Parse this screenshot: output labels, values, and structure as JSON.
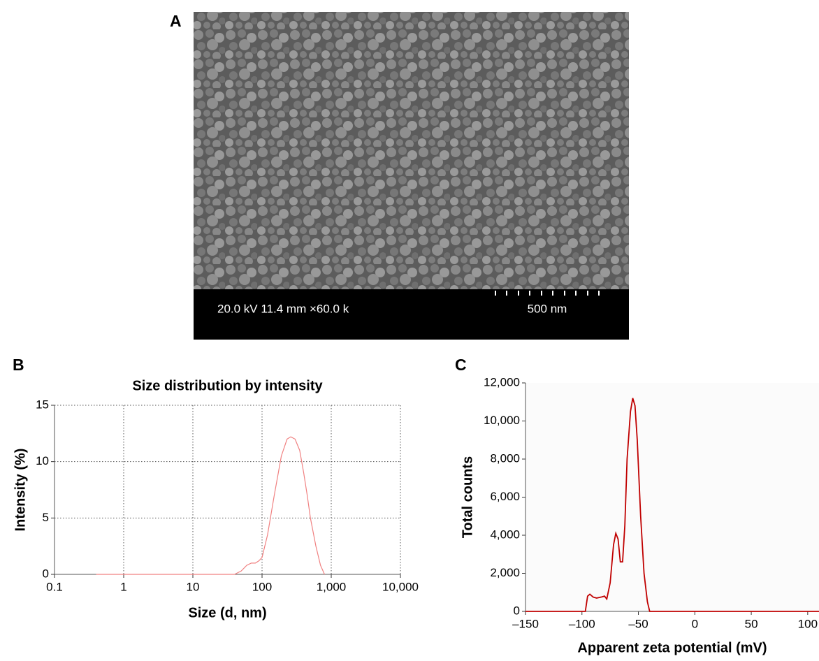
{
  "image": {
    "label": "A",
    "info": "20.0 kV 11.4 mm ×60.0 k",
    "scale": "500 nm"
  },
  "chart_data": [
    {
      "type": "line",
      "panel": "B",
      "title": "Size distribution by intensity",
      "x_label": "Size (d, nm)",
      "y_label": "Intensity (%)",
      "log_x": true,
      "grid": true,
      "xlim": [
        0.1,
        10000
      ],
      "ylim": [
        0,
        15
      ],
      "xticks": [
        0.1,
        1,
        10,
        100,
        {
          "value": 1000,
          "label": "1,000"
        },
        {
          "value": 10000,
          "label": "10,000"
        }
      ],
      "yticks": [
        0,
        5,
        10,
        15
      ],
      "x": [
        0.4,
        1,
        4,
        10,
        20,
        40,
        50,
        60,
        70,
        80,
        90,
        100,
        120,
        150,
        190,
        230,
        260,
        300,
        350,
        400,
        450,
        500,
        600,
        700,
        800
      ],
      "series": [
        {
          "name": "Intensity",
          "color": "#f08080",
          "values": [
            0,
            0,
            0,
            0,
            0,
            0,
            0.3,
            0.8,
            1.0,
            1.0,
            1.2,
            1.5,
            3.5,
            7,
            10.5,
            12,
            12.2,
            12,
            11,
            9,
            7,
            5,
            2.5,
            0.8,
            0
          ]
        }
      ]
    },
    {
      "type": "line",
      "panel": "C",
      "x_label": "Apparent zeta potential (mV)",
      "y_label": "Total counts",
      "log_x": false,
      "grid": false,
      "xlim": [
        -150,
        110
      ],
      "ylim": [
        0,
        12000
      ],
      "xticks": [
        {
          "value": -150,
          "label": "–150"
        },
        {
          "value": -100,
          "label": "–100"
        },
        {
          "value": -50,
          "label": "–50"
        },
        0,
        50,
        100
      ],
      "yticks": [
        0,
        {
          "value": 2000,
          "label": "2,000"
        },
        {
          "value": 4000,
          "label": "4,000"
        },
        {
          "value": 6000,
          "label": "6,000"
        },
        {
          "value": 8000,
          "label": "8,000"
        },
        {
          "value": 10000,
          "label": "10,000"
        },
        {
          "value": 12000,
          "label": "12,000"
        }
      ],
      "x": [
        -150,
        -100,
        -97,
        -95,
        -93,
        -90,
        -87,
        -83,
        -80,
        -78,
        -75,
        -72,
        -70,
        -68,
        -66,
        -64,
        -62,
        -60,
        -57,
        -55,
        -53,
        -51,
        -48,
        -45,
        -42,
        -40,
        0,
        110
      ],
      "series": [
        {
          "name": "Total counts",
          "color": "#c00000",
          "values": [
            0,
            0,
            0,
            800,
            900,
            750,
            700,
            750,
            800,
            650,
            1500,
            3500,
            4100,
            3800,
            2600,
            2600,
            4500,
            8000,
            10500,
            11200,
            10800,
            9000,
            5000,
            2000,
            500,
            0,
            0,
            0
          ]
        }
      ]
    }
  ]
}
